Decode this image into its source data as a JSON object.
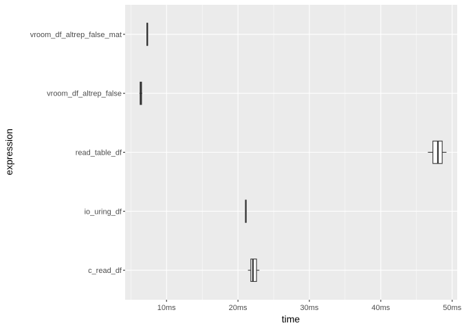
{
  "chart_data": {
    "type": "boxplot",
    "orientation": "horizontal",
    "xlabel": "time",
    "ylabel": "expression",
    "x_unit": "ms",
    "xlim": [
      4.2,
      50.7
    ],
    "x_ticks": [
      {
        "value": 10,
        "label": "10ms"
      },
      {
        "value": 20,
        "label": "20ms"
      },
      {
        "value": 30,
        "label": "30ms"
      },
      {
        "value": 40,
        "label": "40ms"
      },
      {
        "value": 50,
        "label": "50ms"
      }
    ],
    "categories": [
      "vroom_df_altrep_false_mat",
      "vroom_df_altrep_false",
      "read_table_df",
      "io_uring_df",
      "c_read_df"
    ],
    "boxes": [
      {
        "category": "vroom_df_altrep_false_mat",
        "min": 7.2,
        "q1": 7.25,
        "median": 7.3,
        "q3": 7.35,
        "max": 7.4
      },
      {
        "category": "vroom_df_altrep_false",
        "min": 6.2,
        "q1": 6.3,
        "median": 6.4,
        "q3": 6.5,
        "max": 6.6
      },
      {
        "category": "read_table_df",
        "min": 46.6,
        "q1": 47.3,
        "median": 48.0,
        "q3": 48.6,
        "max": 49.2
      },
      {
        "category": "io_uring_df",
        "min": 21.0,
        "q1": 21.05,
        "median": 21.1,
        "q3": 21.15,
        "max": 21.2
      },
      {
        "category": "c_read_df",
        "min": 21.4,
        "q1": 21.8,
        "median": 22.1,
        "q3": 22.6,
        "max": 23.0
      }
    ],
    "panel_background": "#ebebeb",
    "grid_color": "#ffffff",
    "box_stroke": "#333333",
    "box_fill": "#ffffff",
    "grid": true,
    "legend": "none"
  }
}
